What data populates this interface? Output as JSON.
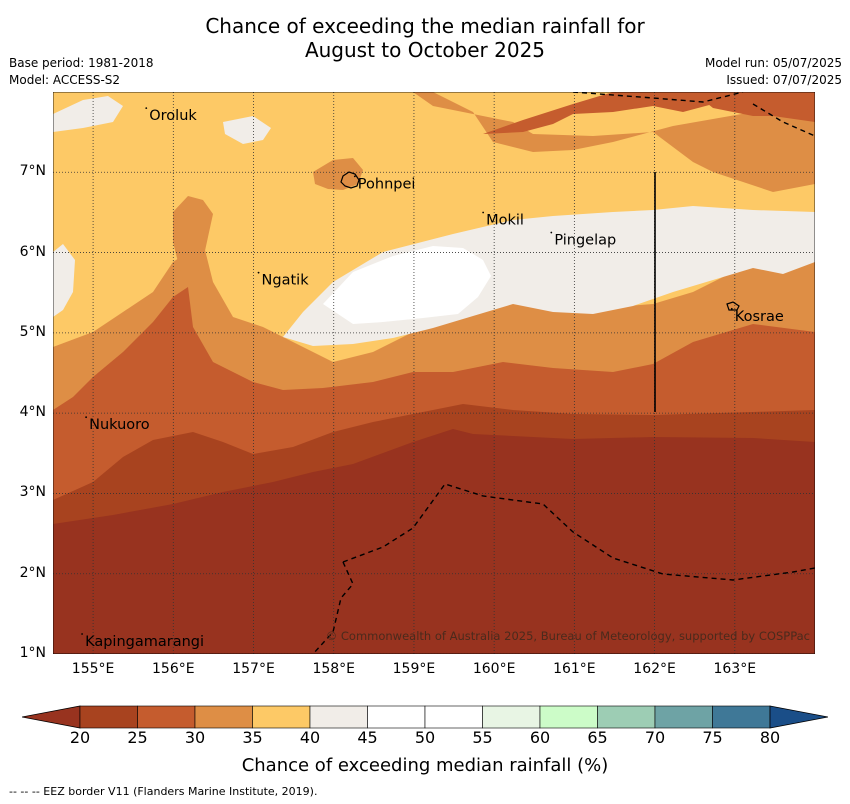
{
  "title_line1": "Chance of exceeding the median rainfall for",
  "title_line2": "August to October 2025",
  "base_period": "Base period: 1981-2018",
  "model": "Model: ACCESS-S2",
  "model_run": "Model run: 05/07/2025",
  "issued": "Issued: 07/07/2025",
  "places": [
    {
      "name": "Oroluk",
      "lon": 155.7,
      "lat": 7.65
    },
    {
      "name": "Pohnpei",
      "lon": 158.3,
      "lat": 6.8
    },
    {
      "name": "Mokil",
      "lon": 159.9,
      "lat": 6.35
    },
    {
      "name": "Pingelap",
      "lon": 160.75,
      "lat": 6.1
    },
    {
      "name": "Ngatik",
      "lon": 157.1,
      "lat": 5.6
    },
    {
      "name": "Kosrae",
      "lon": 163.0,
      "lat": 5.15
    },
    {
      "name": "Nukuoro",
      "lon": 154.95,
      "lat": 3.8
    },
    {
      "name": "Kapingamarangi",
      "lon": 154.9,
      "lat": 1.1
    }
  ],
  "x_ticks": [
    "155°E",
    "156°E",
    "157°E",
    "158°E",
    "159°E",
    "160°E",
    "161°E",
    "162°E",
    "163°E"
  ],
  "y_ticks": [
    "7°N",
    "6°N",
    "5°N",
    "4°N",
    "3°N",
    "2°N",
    "1°N"
  ],
  "lon_range": [
    154.5,
    164.0
  ],
  "lat_range": [
    1.0,
    8.0
  ],
  "copyright": "© Commonwealth of Australia 2025, Bureau of Meteorology, supported by COSPPac",
  "colorbar": {
    "labels": [
      "20",
      "25",
      "30",
      "35",
      "40",
      "45",
      "50",
      "55",
      "60",
      "65",
      "70",
      "75",
      "80"
    ],
    "colors": [
      "#a8431f",
      "#c55c2e",
      "#de8e45",
      "#fdc966",
      "#f1ede8",
      "#ffffff",
      "#ffffff",
      "#e8f5e4",
      "#ccfcc8",
      "#9dcdb4",
      "#6ea3a5",
      "#3f7897",
      "#1f4f85"
    ],
    "under_color": "#98331f",
    "over_color": "#1a4e88",
    "title": "Chance of exceeding median rainfall (%)"
  },
  "footer": "--  --  -- EEZ border V11 (Flanders Marine Institute, 2019)."
}
